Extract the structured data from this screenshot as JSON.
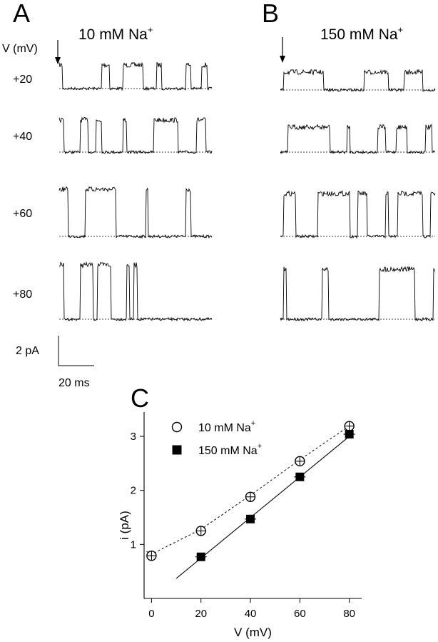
{
  "panels": {
    "a": {
      "letter": "A",
      "condition_main": "10 mM Na",
      "condition_sup": "+",
      "axis_label": "V (mV)",
      "voltages": [
        "+20",
        "+40",
        "+60",
        "+80"
      ]
    },
    "b": {
      "letter": "B",
      "condition_main": "150 mM Na",
      "condition_sup": "+"
    },
    "c": {
      "letter": "C"
    }
  },
  "scale_bar": {
    "current": "2 pA",
    "time": "20 ms"
  },
  "chart_data": {
    "type": "scatter",
    "xlabel": "V (mV)",
    "ylabel": "i (pA)",
    "xlim": [
      -3,
      85
    ],
    "ylim": [
      0,
      3.45
    ],
    "xticks": [
      0,
      20,
      40,
      60,
      80
    ],
    "yticks": [
      1,
      2,
      3
    ],
    "legend_position": "top-left",
    "series": [
      {
        "name": "10 mM Na",
        "name_sup": "+",
        "marker": "open-circle",
        "x": [
          0,
          20,
          40,
          60,
          80
        ],
        "y": [
          0.79,
          1.25,
          1.88,
          2.54,
          3.19
        ],
        "fit": {
          "style": "dashed",
          "x": [
            -2,
            80
          ],
          "y": [
            0.87,
            3.16
          ]
        }
      },
      {
        "name": "150 mM Na",
        "name_sup": "+",
        "marker": "filled-square",
        "x": [
          20,
          40,
          60,
          80
        ],
        "y": [
          0.77,
          1.47,
          2.25,
          3.04
        ],
        "fit": {
          "style": "solid",
          "x": [
            10,
            80
          ],
          "y": [
            0.37,
            3.0
          ]
        }
      }
    ]
  }
}
